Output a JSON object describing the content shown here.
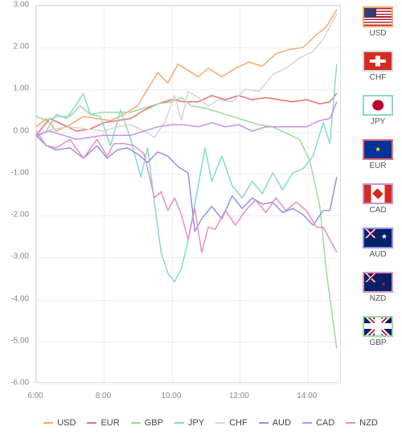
{
  "chart": {
    "type": "line",
    "xlim": [
      6,
      15
    ],
    "ylim": [
      -6,
      3
    ],
    "xticks": [
      6,
      8,
      10,
      12,
      14
    ],
    "xtick_labels": [
      "6:00",
      "8:00",
      "10:00",
      "12:00",
      "14:00"
    ],
    "yticks": [
      -6,
      -5,
      -4,
      -3,
      -2,
      -1,
      0,
      1,
      2,
      3
    ],
    "ytick_labels": [
      "-6.00",
      "-5.00",
      "-4.00",
      "-3.00",
      "-2.00",
      "-1.00",
      "0.00",
      "1.00",
      "2.00",
      "3.00"
    ],
    "grid_color": "#eeeeee",
    "axis_color": "#dddddd",
    "background": "#ffffff",
    "tick_color": "#888888",
    "tick_fontsize": 10,
    "line_width": 1.5,
    "series": {
      "USD": {
        "color": "#f6a96b",
        "points": [
          [
            6,
            0.1
          ],
          [
            6.3,
            0.3
          ],
          [
            6.6,
            0.0
          ],
          [
            7,
            0.15
          ],
          [
            7.4,
            0.35
          ],
          [
            7.8,
            0.3
          ],
          [
            8.2,
            0.25
          ],
          [
            8.6,
            0.4
          ],
          [
            9,
            0.6
          ],
          [
            9.3,
            1.0
          ],
          [
            9.6,
            1.4
          ],
          [
            9.9,
            1.15
          ],
          [
            10.2,
            1.6
          ],
          [
            10.5,
            1.45
          ],
          [
            10.8,
            1.3
          ],
          [
            11.1,
            1.5
          ],
          [
            11.5,
            1.3
          ],
          [
            11.9,
            1.5
          ],
          [
            12.3,
            1.65
          ],
          [
            12.7,
            1.55
          ],
          [
            13.1,
            1.85
          ],
          [
            13.5,
            1.95
          ],
          [
            13.9,
            2.0
          ],
          [
            14.3,
            2.3
          ],
          [
            14.6,
            2.5
          ],
          [
            14.9,
            2.9
          ]
        ]
      },
      "EUR": {
        "color": "#e97070",
        "points": [
          [
            6,
            -0.1
          ],
          [
            6.4,
            0.3
          ],
          [
            6.8,
            0.15
          ],
          [
            7.2,
            0.0
          ],
          [
            7.6,
            0.05
          ],
          [
            8,
            0.2
          ],
          [
            8.4,
            0.25
          ],
          [
            8.8,
            0.3
          ],
          [
            9.2,
            0.5
          ],
          [
            9.6,
            0.65
          ],
          [
            10,
            0.75
          ],
          [
            10.4,
            0.7
          ],
          [
            10.8,
            0.7
          ],
          [
            11.2,
            0.85
          ],
          [
            11.6,
            0.75
          ],
          [
            12,
            0.85
          ],
          [
            12.4,
            0.75
          ],
          [
            12.8,
            0.8
          ],
          [
            13.2,
            0.75
          ],
          [
            13.6,
            0.7
          ],
          [
            14,
            0.75
          ],
          [
            14.4,
            0.65
          ],
          [
            14.7,
            0.7
          ],
          [
            14.9,
            0.9
          ]
        ]
      },
      "GBP": {
        "color": "#9fd99f",
        "points": [
          [
            6,
            0.35
          ],
          [
            6.3,
            0.25
          ],
          [
            6.6,
            0.35
          ],
          [
            7,
            0.35
          ],
          [
            7.3,
            0.6
          ],
          [
            7.6,
            0.4
          ],
          [
            8,
            0.45
          ],
          [
            8.4,
            0.45
          ],
          [
            8.8,
            0.45
          ],
          [
            9.2,
            0.55
          ],
          [
            9.6,
            0.65
          ],
          [
            10,
            0.7
          ],
          [
            10.3,
            0.8
          ],
          [
            10.6,
            0.6
          ],
          [
            11,
            0.55
          ],
          [
            11.4,
            0.45
          ],
          [
            11.8,
            0.35
          ],
          [
            12.2,
            0.25
          ],
          [
            12.6,
            0.15
          ],
          [
            13,
            0.1
          ],
          [
            13.4,
            -0.05
          ],
          [
            13.8,
            -0.2
          ],
          [
            14.1,
            -0.7
          ],
          [
            14.4,
            -1.8
          ],
          [
            14.6,
            -3.4
          ],
          [
            14.9,
            -5.2
          ]
        ]
      },
      "JPY": {
        "color": "#86d9d1",
        "points": [
          [
            6,
            -0.15
          ],
          [
            6.3,
            0.0
          ],
          [
            6.6,
            0.4
          ],
          [
            6.9,
            0.3
          ],
          [
            7.2,
            0.65
          ],
          [
            7.4,
            0.9
          ],
          [
            7.6,
            0.4
          ],
          [
            7.9,
            0.35
          ],
          [
            8.2,
            -0.35
          ],
          [
            8.5,
            0.5
          ],
          [
            8.8,
            -0.2
          ],
          [
            9.1,
            -1.1
          ],
          [
            9.3,
            -0.4
          ],
          [
            9.5,
            -1.7
          ],
          [
            9.7,
            -2.9
          ],
          [
            9.9,
            -3.4
          ],
          [
            10.1,
            -3.6
          ],
          [
            10.3,
            -3.3
          ],
          [
            10.5,
            -2.6
          ],
          [
            10.8,
            -1.3
          ],
          [
            11,
            -0.4
          ],
          [
            11.2,
            -1.2
          ],
          [
            11.5,
            -0.6
          ],
          [
            11.8,
            -1.3
          ],
          [
            12.1,
            -1.6
          ],
          [
            12.4,
            -1.2
          ],
          [
            12.7,
            -1.5
          ],
          [
            13,
            -1.0
          ],
          [
            13.3,
            -1.4
          ],
          [
            13.6,
            -1.0
          ],
          [
            13.9,
            -0.9
          ],
          [
            14.2,
            -0.6
          ],
          [
            14.5,
            0.2
          ],
          [
            14.7,
            -0.3
          ],
          [
            14.9,
            1.6
          ]
        ]
      },
      "CHF": {
        "color": "#d5d5d5",
        "points": [
          [
            6,
            -0.1
          ],
          [
            6.5,
            0.05
          ],
          [
            7,
            0.1
          ],
          [
            7.5,
            0.05
          ],
          [
            8,
            0.0
          ],
          [
            8.4,
            0.1
          ],
          [
            8.8,
            0.15
          ],
          [
            9.2,
            0.0
          ],
          [
            9.5,
            -0.15
          ],
          [
            9.8,
            0.2
          ],
          [
            10.1,
            0.85
          ],
          [
            10.3,
            0.25
          ],
          [
            10.5,
            0.95
          ],
          [
            10.8,
            0.8
          ],
          [
            11.1,
            0.6
          ],
          [
            11.4,
            0.75
          ],
          [
            11.8,
            0.7
          ],
          [
            12.2,
            1.0
          ],
          [
            12.6,
            0.95
          ],
          [
            13,
            1.35
          ],
          [
            13.4,
            1.5
          ],
          [
            13.8,
            1.75
          ],
          [
            14.2,
            1.9
          ],
          [
            14.5,
            2.2
          ],
          [
            14.9,
            2.8
          ]
        ]
      },
      "AUD": {
        "color": "#9090e8",
        "points": [
          [
            6,
            -0.1
          ],
          [
            6.3,
            -0.35
          ],
          [
            6.6,
            -0.45
          ],
          [
            7,
            -0.4
          ],
          [
            7.4,
            -0.65
          ],
          [
            7.8,
            -0.35
          ],
          [
            8.1,
            -0.65
          ],
          [
            8.4,
            -0.45
          ],
          [
            8.7,
            -0.4
          ],
          [
            9,
            -0.55
          ],
          [
            9.3,
            -0.75
          ],
          [
            9.6,
            -0.5
          ],
          [
            9.9,
            -0.6
          ],
          [
            10.2,
            -0.85
          ],
          [
            10.5,
            -1.0
          ],
          [
            10.7,
            -2.4
          ],
          [
            10.9,
            -2.1
          ],
          [
            11.2,
            -1.8
          ],
          [
            11.5,
            -2.1
          ],
          [
            11.8,
            -1.55
          ],
          [
            12.1,
            -1.85
          ],
          [
            12.4,
            -1.6
          ],
          [
            12.7,
            -1.75
          ],
          [
            13,
            -1.7
          ],
          [
            13.3,
            -1.95
          ],
          [
            13.6,
            -1.85
          ],
          [
            13.9,
            -2.0
          ],
          [
            14.2,
            -2.25
          ],
          [
            14.5,
            -1.9
          ],
          [
            14.7,
            -1.9
          ],
          [
            14.9,
            -1.1
          ]
        ]
      },
      "CAD": {
        "color": "#c393e3",
        "points": [
          [
            6,
            -0.1
          ],
          [
            6.4,
            0.0
          ],
          [
            6.8,
            -0.1
          ],
          [
            7.2,
            -0.2
          ],
          [
            7.6,
            -0.15
          ],
          [
            8,
            -0.1
          ],
          [
            8.4,
            -0.1
          ],
          [
            8.8,
            -0.1
          ],
          [
            9.2,
            0.0
          ],
          [
            9.6,
            0.1
          ],
          [
            10,
            0.15
          ],
          [
            10.4,
            0.15
          ],
          [
            10.8,
            0.1
          ],
          [
            11.2,
            0.2
          ],
          [
            11.6,
            0.1
          ],
          [
            12,
            0.15
          ],
          [
            12.4,
            0.0
          ],
          [
            12.8,
            0.1
          ],
          [
            13.2,
            0.1
          ],
          [
            13.6,
            0.1
          ],
          [
            14,
            0.1
          ],
          [
            14.4,
            0.25
          ],
          [
            14.7,
            0.3
          ],
          [
            14.9,
            0.7
          ]
        ]
      },
      "NZD": {
        "color": "#e88fc0",
        "points": [
          [
            6,
            0.0
          ],
          [
            6.3,
            -0.35
          ],
          [
            6.6,
            -0.4
          ],
          [
            7,
            -0.2
          ],
          [
            7.4,
            -0.65
          ],
          [
            7.8,
            -0.2
          ],
          [
            8.1,
            -0.6
          ],
          [
            8.3,
            -0.3
          ],
          [
            8.6,
            -0.3
          ],
          [
            8.9,
            -0.35
          ],
          [
            9.2,
            -0.55
          ],
          [
            9.5,
            -1.6
          ],
          [
            9.7,
            -1.45
          ],
          [
            9.9,
            -1.9
          ],
          [
            10.1,
            -1.6
          ],
          [
            10.3,
            -2.0
          ],
          [
            10.5,
            -2.6
          ],
          [
            10.7,
            -1.85
          ],
          [
            10.9,
            -2.9
          ],
          [
            11.1,
            -2.3
          ],
          [
            11.3,
            -2.35
          ],
          [
            11.6,
            -1.9
          ],
          [
            11.9,
            -2.25
          ],
          [
            12.2,
            -1.9
          ],
          [
            12.5,
            -1.65
          ],
          [
            12.8,
            -1.95
          ],
          [
            13.1,
            -1.6
          ],
          [
            13.4,
            -1.9
          ],
          [
            13.7,
            -1.7
          ],
          [
            14,
            -1.9
          ],
          [
            14.3,
            -2.3
          ],
          [
            14.5,
            -2.3
          ],
          [
            14.7,
            -2.6
          ],
          [
            14.9,
            -2.9
          ]
        ]
      }
    }
  },
  "sideLegend": [
    {
      "code": "USD",
      "flag": "us",
      "border": "#f6a96b"
    },
    {
      "code": "CHF",
      "flag": "ch",
      "border": "#d5d5d5"
    },
    {
      "code": "JPY",
      "flag": "jp",
      "border": "#86d9d1"
    },
    {
      "code": "EUR",
      "flag": "eu",
      "border": "#e97070"
    },
    {
      "code": "CAD",
      "flag": "ca",
      "border": "#c393e3"
    },
    {
      "code": "AUD",
      "flag": "au",
      "border": "#9090e8"
    },
    {
      "code": "NZD",
      "flag": "nz",
      "border": "#e88fc0"
    },
    {
      "code": "GBP",
      "flag": "gb",
      "border": "#9fd99f"
    }
  ],
  "bottomLegend": [
    "USD",
    "EUR",
    "GBP",
    "JPY",
    "CHF",
    "AUD",
    "CAD",
    "NZD"
  ]
}
